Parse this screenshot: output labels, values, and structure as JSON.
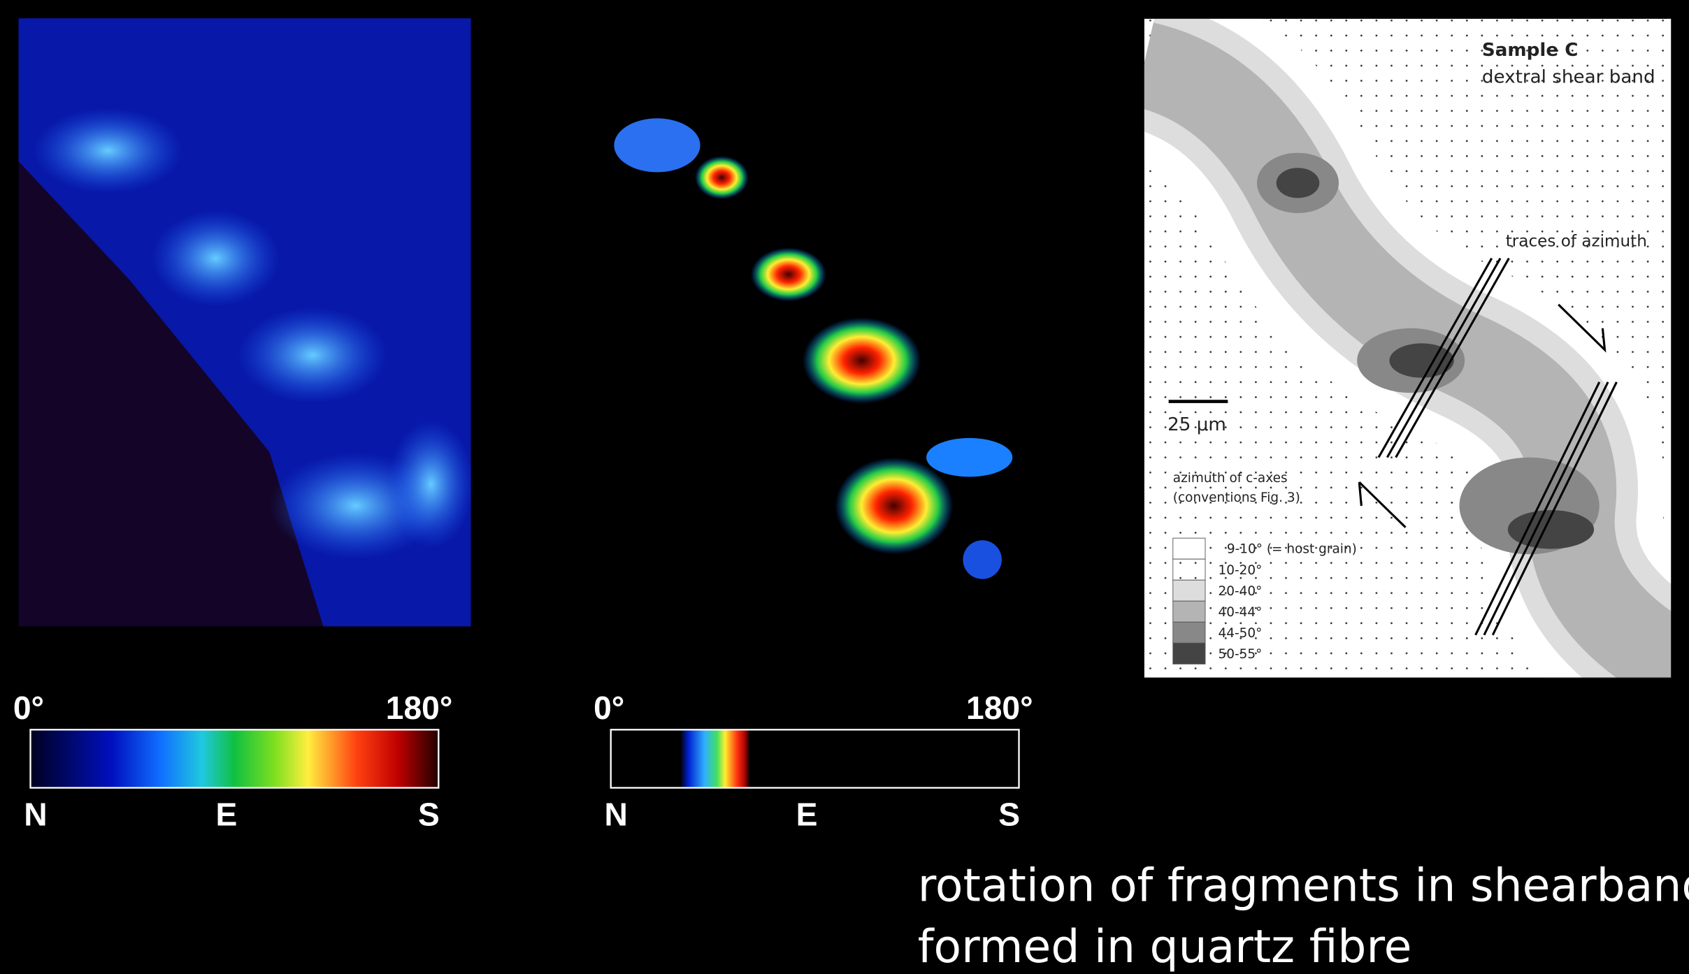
{
  "colorbars": [
    {
      "min_label": "0°",
      "max_label": "180°",
      "directions": [
        "N",
        "E",
        "S"
      ]
    },
    {
      "min_label": "0°",
      "max_label": "180°",
      "directions": [
        "N",
        "E",
        "S"
      ]
    }
  ],
  "map": {
    "title": "Sample C",
    "subtitle": "dextral shear band",
    "annotation": "traces of azimuth",
    "scale_bar": "25 μm",
    "legend_title": [
      "azimuth of c-axes",
      "(conventions Fig. 3)"
    ],
    "legend": [
      "9-10° (= host grain)",
      "10-20°",
      "20-40°",
      "40-44°",
      "44-50°",
      "50-55°"
    ]
  },
  "caption": [
    "rotation of fragments in shearband",
    "formed in quartz fibre"
  ]
}
